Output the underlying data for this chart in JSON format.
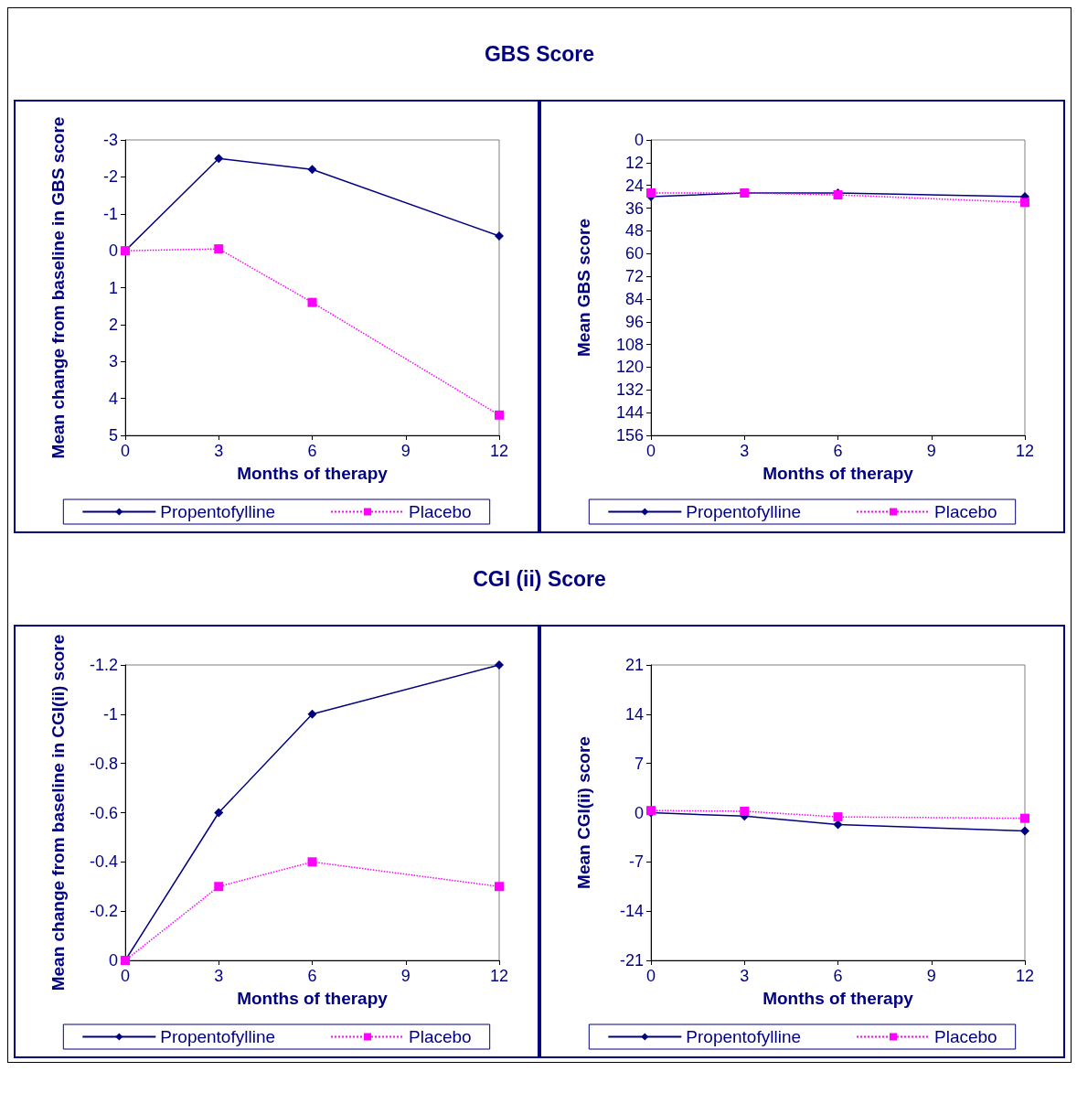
{
  "chart_data": [
    {
      "type": "line",
      "title": "GBS Score",
      "xlabel": "Months of therapy",
      "ylabel": "Mean change from baseline in GBS score",
      "x": [
        0,
        3,
        6,
        12
      ],
      "xlim": [
        0,
        12
      ],
      "xticks": [
        0,
        3,
        6,
        9,
        12
      ],
      "ylim": [
        5,
        -3
      ],
      "yticks": [
        -3,
        -2,
        -1,
        0,
        1,
        2,
        3,
        4,
        5
      ],
      "grid": false,
      "legend": "bottom",
      "series": [
        {
          "name": "Propentofylline",
          "color": "#000080",
          "values": [
            0,
            -2.5,
            -2.2,
            -0.4
          ],
          "marker": "diamond",
          "line_style": "solid"
        },
        {
          "name": "Placebo",
          "color": "#ff00ff",
          "values": [
            0,
            -0.05,
            1.4,
            4.45
          ],
          "marker": "square",
          "line_style": "dotted"
        }
      ]
    },
    {
      "type": "line",
      "xlabel": "Months of therapy",
      "ylabel": "Mean GBS score",
      "x": [
        0,
        3,
        6,
        12
      ],
      "xlim": [
        0,
        12
      ],
      "xticks": [
        0,
        3,
        6,
        9,
        12
      ],
      "ylim": [
        156,
        0
      ],
      "yticks": [
        0,
        12,
        24,
        36,
        48,
        60,
        72,
        84,
        96,
        108,
        120,
        132,
        144,
        156
      ],
      "grid": false,
      "legend": "bottom",
      "series": [
        {
          "name": "Propentofylline",
          "color": "#000080",
          "values": [
            30,
            28,
            28,
            30
          ],
          "marker": "diamond",
          "line_style": "solid"
        },
        {
          "name": "Placebo",
          "color": "#ff00ff",
          "values": [
            28,
            28,
            29,
            33
          ],
          "marker": "square",
          "line_style": "dotted"
        }
      ]
    },
    {
      "type": "line",
      "title": "CGI (ii) Score",
      "xlabel": "Months of therapy",
      "ylabel": "Mean change from baseline in CGI(ii) score",
      "x": [
        0,
        3,
        6,
        12
      ],
      "xlim": [
        0,
        12
      ],
      "xticks": [
        0,
        3,
        6,
        9,
        12
      ],
      "ylim": [
        0,
        -1.2
      ],
      "yticks": [
        0,
        -0.2,
        -0.4,
        -0.6,
        -0.8,
        -1,
        -1.2
      ],
      "grid": false,
      "legend": "bottom",
      "series": [
        {
          "name": "Propentofylline",
          "color": "#000080",
          "values": [
            0,
            -0.6,
            -1,
            -1.2
          ],
          "marker": "diamond",
          "line_style": "solid"
        },
        {
          "name": "Placebo",
          "color": "#ff00ff",
          "values": [
            0,
            -0.3,
            -0.4,
            -0.3
          ],
          "marker": "square",
          "line_style": "dotted"
        }
      ]
    },
    {
      "type": "line",
      "xlabel": "Months of therapy",
      "ylabel": "Mean CGI(ii) score",
      "x": [
        0,
        3,
        6,
        12
      ],
      "xlim": [
        0,
        12
      ],
      "xticks": [
        0,
        3,
        6,
        9,
        12
      ],
      "ylim": [
        -21,
        21
      ],
      "yticks": [
        -21,
        -14,
        -7,
        0,
        7,
        14,
        21
      ],
      "grid": false,
      "legend": "bottom",
      "series": [
        {
          "name": "Propentofylline",
          "color": "#000080",
          "values": [
            0,
            -0.5,
            -1.7,
            -2.6
          ],
          "marker": "diamond",
          "line_style": "solid"
        },
        {
          "name": "Placebo",
          "color": "#ff00ff",
          "values": [
            0.3,
            0.2,
            -0.6,
            -0.8
          ],
          "marker": "square",
          "line_style": "dotted"
        }
      ]
    }
  ]
}
